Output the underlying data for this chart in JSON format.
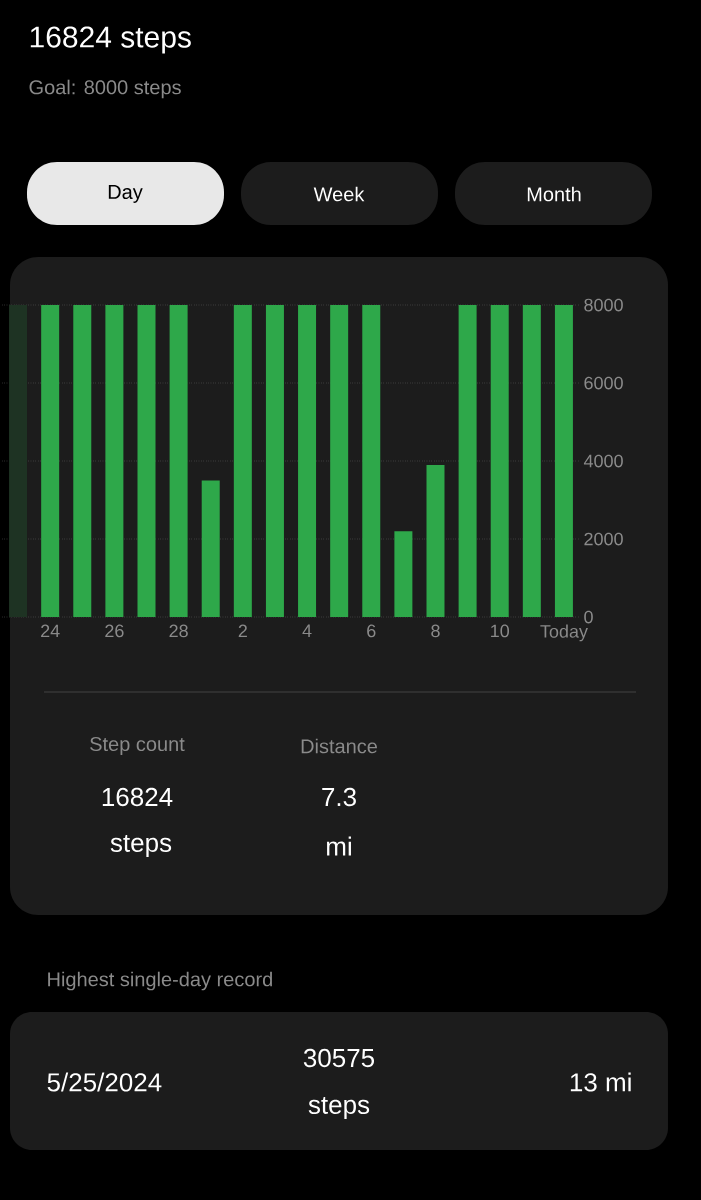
{
  "chart_data": {
    "type": "bar",
    "title": "16824 steps",
    "subtitle": "Goal: 8000 steps",
    "categories": [
      null,
      "24",
      null,
      "26",
      null,
      "28",
      null,
      "2",
      null,
      "4",
      null,
      "6",
      null,
      "8",
      null,
      "10",
      null,
      "Today"
    ],
    "values": [
      8000,
      8000,
      8000,
      8000,
      8000,
      8000,
      3500,
      8000,
      8000,
      8000,
      8000,
      8000,
      2200,
      3900,
      8000,
      8000,
      8000,
      8000
    ],
    "colors": [
      "#1e3323",
      "#2ea84a",
      "#2ea84a",
      "#2ea84a",
      "#2ea84a",
      "#2ea84a",
      "#2ea84a",
      "#2ea84a",
      "#2ea84a",
      "#2ea84a",
      "#2ea84a",
      "#2ea84a",
      "#2ea84a",
      "#2ea84a",
      "#2ea84a",
      "#2ea84a",
      "#2ea84a",
      "#2ea84a"
    ],
    "ylim": [
      0,
      8000
    ],
    "yticks": [
      0,
      2000,
      4000,
      6000,
      8000
    ],
    "grid": "y",
    "annotations": [
      "Day",
      "Week",
      "Month",
      "Step count",
      "16824",
      "steps",
      "Distance",
      "7.3",
      "mi",
      "Highest single-day record",
      "5/25/2024",
      "30575",
      "steps",
      "13 mi"
    ]
  }
}
